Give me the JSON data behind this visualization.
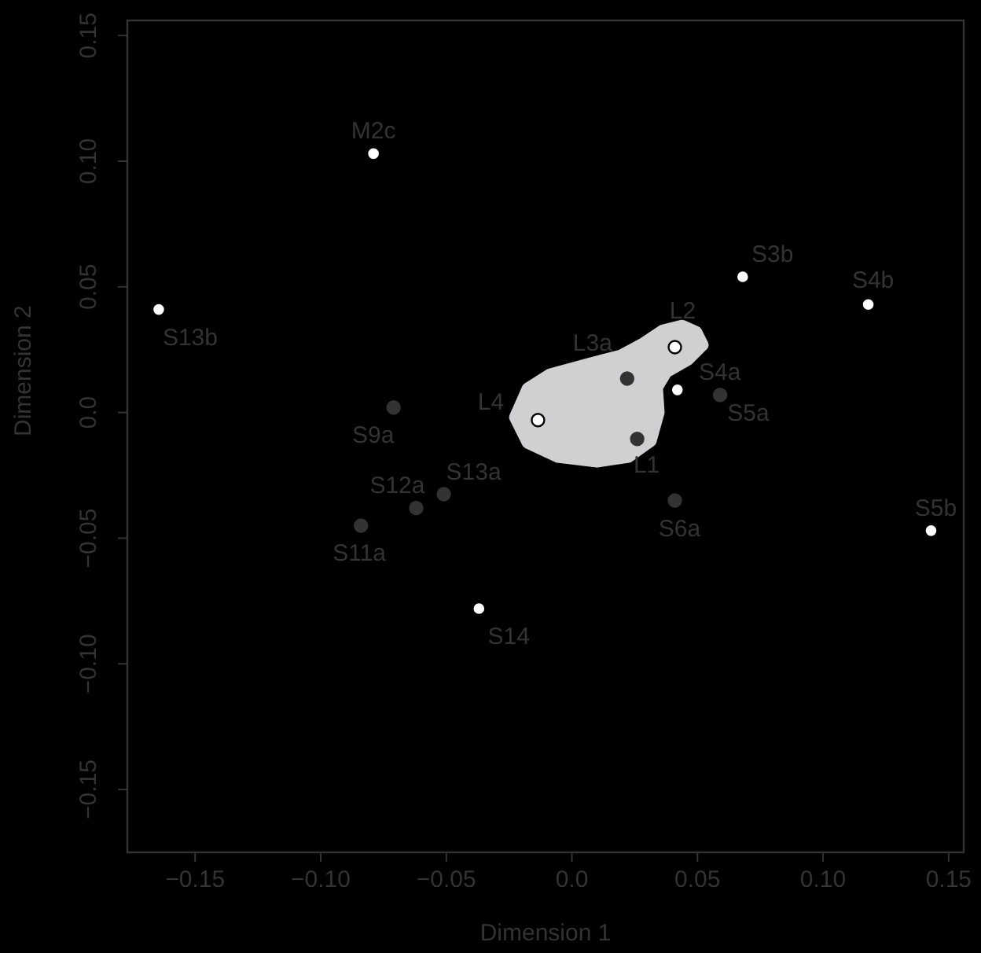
{
  "chart_data": {
    "type": "scatter",
    "xlabel": "Dimension 1",
    "ylabel": "Dimension 2",
    "xlim": [
      -0.177,
      0.156
    ],
    "ylim": [
      -0.175,
      0.156
    ],
    "xticks": [
      {
        "value": -0.15,
        "label": "−0.15"
      },
      {
        "value": -0.1,
        "label": "−0.10"
      },
      {
        "value": -0.05,
        "label": "−0.05"
      },
      {
        "value": 0,
        "label": "0.0"
      },
      {
        "value": 0.05,
        "label": "0.05"
      },
      {
        "value": 0.1,
        "label": "0.10"
      },
      {
        "value": 0.15,
        "label": "0.15"
      }
    ],
    "yticks": [
      {
        "value": -0.15,
        "label": "−0.15"
      },
      {
        "value": -0.1,
        "label": "−0.10"
      },
      {
        "value": -0.05,
        "label": "−0.05"
      },
      {
        "value": 0,
        "label": "0.0"
      },
      {
        "value": 0.05,
        "label": "0.05"
      },
      {
        "value": 0.1,
        "label": "0.10"
      },
      {
        "value": 0.15,
        "label": "0.15"
      }
    ],
    "grid": false,
    "marker": "circle",
    "series": [
      {
        "color": "#ffffff",
        "x": [
          -0.079,
          -0.1645,
          0.068,
          0.118,
          0.041,
          0.042,
          -0.0135,
          0.143,
          -0.037
        ],
        "values": [
          0.103,
          0.041,
          0.054,
          0.043,
          0.026,
          0.009,
          -0.003,
          -0.047,
          -0.078
        ]
      },
      {
        "color": "#333333",
        "x": [
          0.022,
          0.059,
          -0.071,
          0.026,
          -0.062,
          -0.051,
          -0.084,
          0.041
        ],
        "values": [
          0.0135,
          0.007,
          0.002,
          -0.0105,
          -0.038,
          -0.0325,
          -0.045,
          -0.035
        ]
      }
    ],
    "annotations": [
      {
        "text": "M2c",
        "x": -0.079,
        "y": 0.103
      },
      {
        "text": "S13b",
        "x": -0.1645,
        "y": 0.041
      },
      {
        "text": "S3b",
        "x": 0.068,
        "y": 0.054
      },
      {
        "text": "S4b",
        "x": 0.118,
        "y": 0.043
      },
      {
        "text": "L2",
        "x": 0.041,
        "y": 0.026
      },
      {
        "text": "L3a",
        "x": 0.022,
        "y": 0.0135
      },
      {
        "text": "S4a",
        "x": 0.042,
        "y": 0.009
      },
      {
        "text": "S5a",
        "x": 0.059,
        "y": 0.007
      },
      {
        "text": "L4",
        "x": -0.0135,
        "y": -0.003
      },
      {
        "text": "S9a",
        "x": -0.071,
        "y": 0.002
      },
      {
        "text": "L1",
        "x": 0.026,
        "y": -0.0105
      },
      {
        "text": "S12a",
        "x": -0.062,
        "y": -0.038
      },
      {
        "text": "S13a",
        "x": -0.051,
        "y": -0.0325
      },
      {
        "text": "S11a",
        "x": -0.084,
        "y": -0.045
      },
      {
        "text": "S6a",
        "x": 0.041,
        "y": -0.035
      },
      {
        "text": "S5b",
        "x": 0.143,
        "y": -0.047
      },
      {
        "text": "S14",
        "x": -0.037,
        "y": -0.078
      }
    ]
  }
}
